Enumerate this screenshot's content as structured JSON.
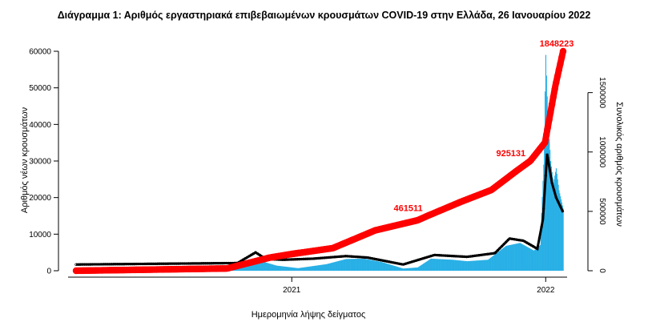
{
  "title": "Διάγραμμα 1: Αριθμός εργαστηριακά επιβεβαιωμένων κρουσμάτων COVID-19 στην Ελλάδα, 26 Ιανουαρίου 2022",
  "chart_data": {
    "type": "bar",
    "xlabel": "Ημερομηνία λήψης δείγματος",
    "ylabel_left": "Αριθμός νέων κρουσμάτων",
    "ylabel_right": "Συνολικός αριθμός κρουσμάτων",
    "x_range": [
      "2020-02-26",
      "2022-01-26"
    ],
    "x_ticks": [
      {
        "date": "2021-01-01",
        "label": "2021"
      },
      {
        "date": "2022-01-01",
        "label": "2022"
      }
    ],
    "ylim_left": [
      0,
      60000
    ],
    "yticks_left": [
      0,
      10000,
      20000,
      30000,
      40000,
      50000,
      60000
    ],
    "ylim_right": [
      0,
      1848223
    ],
    "yticks_right": [
      0,
      500000,
      1000000,
      1500000
    ],
    "grid": false,
    "legend": "none",
    "colors": {
      "daily_bars": "#29b0e6",
      "cumulative": "#ff0000",
      "moving_average": "#000000"
    },
    "daily_cases_anchors": [
      {
        "date": "2020-02-26",
        "value": 0
      },
      {
        "date": "2020-07-20",
        "value": 50
      },
      {
        "date": "2020-10-01",
        "value": 300
      },
      {
        "date": "2020-10-28",
        "value": 2500
      },
      {
        "date": "2020-11-10",
        "value": 3400
      },
      {
        "date": "2020-11-22",
        "value": 2400
      },
      {
        "date": "2020-12-10",
        "value": 1400
      },
      {
        "date": "2021-01-10",
        "value": 700
      },
      {
        "date": "2021-02-20",
        "value": 1800
      },
      {
        "date": "2021-03-20",
        "value": 3200
      },
      {
        "date": "2021-04-15",
        "value": 3300
      },
      {
        "date": "2021-05-10",
        "value": 2400
      },
      {
        "date": "2021-06-10",
        "value": 600
      },
      {
        "date": "2021-07-01",
        "value": 900
      },
      {
        "date": "2021-07-20",
        "value": 3300
      },
      {
        "date": "2021-08-20",
        "value": 3000
      },
      {
        "date": "2021-09-10",
        "value": 2600
      },
      {
        "date": "2021-10-10",
        "value": 3000
      },
      {
        "date": "2021-11-05",
        "value": 6800
      },
      {
        "date": "2021-11-25",
        "value": 7600
      },
      {
        "date": "2021-12-15",
        "value": 5500
      },
      {
        "date": "2021-12-24",
        "value": 7000
      },
      {
        "date": "2021-12-29",
        "value": 29000
      },
      {
        "date": "2022-01-01",
        "value": 59000
      },
      {
        "date": "2022-01-04",
        "value": 42000
      },
      {
        "date": "2022-01-08",
        "value": 30000
      },
      {
        "date": "2022-01-12",
        "value": 24000
      },
      {
        "date": "2022-01-16",
        "value": 28000
      },
      {
        "date": "2022-01-20",
        "value": 22000
      },
      {
        "date": "2022-01-26",
        "value": 17000
      }
    ],
    "cumulative_anchors": [
      {
        "date": "2020-02-26",
        "value": 0
      },
      {
        "date": "2020-09-30",
        "value": 19000
      },
      {
        "date": "2020-11-30",
        "value": 110000
      },
      {
        "date": "2020-12-31",
        "value": 140000
      },
      {
        "date": "2021-03-01",
        "value": 190000
      },
      {
        "date": "2021-05-01",
        "value": 340000
      },
      {
        "date": "2021-07-01",
        "value": 425000
      },
      {
        "date": "2021-07-15",
        "value": 461511
      },
      {
        "date": "2021-09-01",
        "value": 580000
      },
      {
        "date": "2021-10-15",
        "value": 680000
      },
      {
        "date": "2021-11-20",
        "value": 840000
      },
      {
        "date": "2021-12-10",
        "value": 925131
      },
      {
        "date": "2021-12-31",
        "value": 1080000
      },
      {
        "date": "2022-01-15",
        "value": 1560000
      },
      {
        "date": "2022-01-26",
        "value": 1848223
      }
    ],
    "moving_average_anchors": [
      {
        "date": "2020-02-26",
        "value": 1700
      },
      {
        "date": "2020-10-15",
        "value": 2100
      },
      {
        "date": "2020-11-01",
        "value": 4000
      },
      {
        "date": "2020-11-10",
        "value": 5000
      },
      {
        "date": "2020-11-25",
        "value": 3200
      },
      {
        "date": "2020-12-20",
        "value": 3000
      },
      {
        "date": "2021-02-01",
        "value": 3300
      },
      {
        "date": "2021-03-20",
        "value": 4000
      },
      {
        "date": "2021-04-20",
        "value": 3600
      },
      {
        "date": "2021-06-10",
        "value": 1700
      },
      {
        "date": "2021-07-25",
        "value": 4300
      },
      {
        "date": "2021-09-10",
        "value": 3800
      },
      {
        "date": "2021-10-20",
        "value": 4800
      },
      {
        "date": "2021-11-10",
        "value": 8800
      },
      {
        "date": "2021-11-30",
        "value": 8200
      },
      {
        "date": "2021-12-20",
        "value": 6000
      },
      {
        "date": "2021-12-28",
        "value": 14000
      },
      {
        "date": "2022-01-03",
        "value": 32000
      },
      {
        "date": "2022-01-10",
        "value": 24000
      },
      {
        "date": "2022-01-16",
        "value": 20000
      },
      {
        "date": "2022-01-26",
        "value": 16000
      }
    ],
    "annotations": [
      {
        "text": "461511",
        "date": "2021-07-15",
        "value": 461511
      },
      {
        "text": "925131",
        "date": "2021-12-10",
        "value": 925131
      },
      {
        "text": "1848223",
        "date": "2022-01-26",
        "value": 1848223
      }
    ]
  }
}
